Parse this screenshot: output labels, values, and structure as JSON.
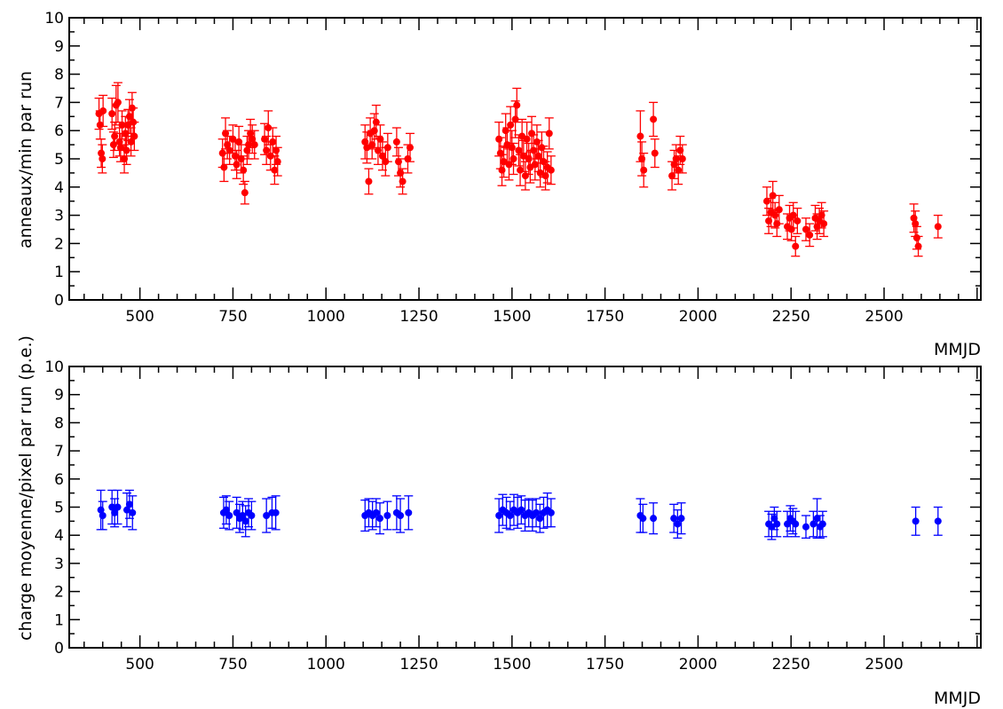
{
  "chart_data": [
    {
      "type": "scatter",
      "error_bars": true,
      "title": "",
      "xlabel": "MMJD",
      "ylabel": "anneaux/min par run",
      "xlim": [
        310,
        2760
      ],
      "ylim": [
        0,
        10
      ],
      "x_ticks": [
        500,
        750,
        1000,
        1250,
        1500,
        1750,
        2000,
        2250,
        2500
      ],
      "y_ticks": [
        0,
        1,
        2,
        3,
        4,
        5,
        6,
        7,
        8,
        9,
        10
      ],
      "grid": false,
      "marker_color": "#ff0000",
      "points": [
        {
          "x": 390,
          "y": 6.6,
          "err": 0.55
        },
        {
          "x": 393,
          "y": 6.2,
          "err": 0.5
        },
        {
          "x": 396,
          "y": 5.2,
          "err": 0.5
        },
        {
          "x": 399,
          "y": 5.0,
          "err": 0.5
        },
        {
          "x": 401,
          "y": 6.7,
          "err": 0.55
        },
        {
          "x": 425,
          "y": 6.6,
          "err": 0.55
        },
        {
          "x": 429,
          "y": 5.5,
          "err": 0.45
        },
        {
          "x": 432,
          "y": 5.8,
          "err": 0.5
        },
        {
          "x": 436,
          "y": 6.9,
          "err": 0.7
        },
        {
          "x": 441,
          "y": 7.0,
          "err": 0.7
        },
        {
          "x": 445,
          "y": 5.6,
          "err": 0.5
        },
        {
          "x": 448,
          "y": 5.4,
          "err": 0.5
        },
        {
          "x": 452,
          "y": 6.2,
          "err": 0.5
        },
        {
          "x": 458,
          "y": 5.0,
          "err": 0.5
        },
        {
          "x": 461,
          "y": 5.9,
          "err": 0.6
        },
        {
          "x": 464,
          "y": 5.3,
          "err": 0.5
        },
        {
          "x": 468,
          "y": 6.2,
          "err": 0.55
        },
        {
          "x": 472,
          "y": 6.5,
          "err": 0.6
        },
        {
          "x": 476,
          "y": 5.6,
          "err": 0.5
        },
        {
          "x": 479,
          "y": 6.8,
          "err": 0.55
        },
        {
          "x": 482,
          "y": 6.3,
          "err": 0.5
        },
        {
          "x": 485,
          "y": 5.8,
          "err": 0.5
        },
        {
          "x": 722,
          "y": 5.2,
          "err": 0.5
        },
        {
          "x": 726,
          "y": 4.7,
          "err": 0.5
        },
        {
          "x": 730,
          "y": 5.9,
          "err": 0.55
        },
        {
          "x": 735,
          "y": 5.5,
          "err": 0.5
        },
        {
          "x": 741,
          "y": 5.3,
          "err": 0.5
        },
        {
          "x": 750,
          "y": 5.7,
          "err": 0.5
        },
        {
          "x": 756,
          "y": 5.1,
          "err": 0.5
        },
        {
          "x": 760,
          "y": 4.8,
          "err": 0.5
        },
        {
          "x": 766,
          "y": 5.6,
          "err": 0.55
        },
        {
          "x": 772,
          "y": 5.0,
          "err": 0.5
        },
        {
          "x": 778,
          "y": 4.6,
          "err": 0.5
        },
        {
          "x": 782,
          "y": 3.8,
          "err": 0.4
        },
        {
          "x": 788,
          "y": 5.3,
          "err": 0.5
        },
        {
          "x": 792,
          "y": 5.5,
          "err": 0.5
        },
        {
          "x": 797,
          "y": 5.9,
          "err": 0.5
        },
        {
          "x": 802,
          "y": 5.7,
          "err": 0.5
        },
        {
          "x": 808,
          "y": 5.5,
          "err": 0.5
        },
        {
          "x": 835,
          "y": 5.7,
          "err": 0.55
        },
        {
          "x": 840,
          "y": 5.3,
          "err": 0.5
        },
        {
          "x": 845,
          "y": 6.1,
          "err": 0.6
        },
        {
          "x": 851,
          "y": 5.1,
          "err": 0.5
        },
        {
          "x": 857,
          "y": 5.6,
          "err": 0.5
        },
        {
          "x": 862,
          "y": 4.6,
          "err": 0.5
        },
        {
          "x": 866,
          "y": 5.3,
          "err": 0.5
        },
        {
          "x": 870,
          "y": 4.9,
          "err": 0.5
        },
        {
          "x": 1105,
          "y": 5.6,
          "err": 0.6
        },
        {
          "x": 1110,
          "y": 5.4,
          "err": 0.55
        },
        {
          "x": 1115,
          "y": 4.2,
          "err": 0.45
        },
        {
          "x": 1119,
          "y": 5.9,
          "err": 0.55
        },
        {
          "x": 1124,
          "y": 5.5,
          "err": 0.5
        },
        {
          "x": 1130,
          "y": 6.0,
          "err": 0.6
        },
        {
          "x": 1135,
          "y": 6.3,
          "err": 0.6
        },
        {
          "x": 1140,
          "y": 5.3,
          "err": 0.5
        },
        {
          "x": 1146,
          "y": 5.7,
          "err": 0.5
        },
        {
          "x": 1152,
          "y": 5.1,
          "err": 0.5
        },
        {
          "x": 1160,
          "y": 4.9,
          "err": 0.5
        },
        {
          "x": 1166,
          "y": 5.4,
          "err": 0.5
        },
        {
          "x": 1190,
          "y": 5.6,
          "err": 0.5
        },
        {
          "x": 1195,
          "y": 4.9,
          "err": 0.5
        },
        {
          "x": 1200,
          "y": 4.5,
          "err": 0.5
        },
        {
          "x": 1206,
          "y": 4.2,
          "err": 0.45
        },
        {
          "x": 1220,
          "y": 5.0,
          "err": 0.5
        },
        {
          "x": 1226,
          "y": 5.4,
          "err": 0.5
        },
        {
          "x": 1465,
          "y": 5.7,
          "err": 0.6
        },
        {
          "x": 1469,
          "y": 5.2,
          "err": 0.55
        },
        {
          "x": 1473,
          "y": 4.6,
          "err": 0.55
        },
        {
          "x": 1478,
          "y": 4.9,
          "err": 0.55
        },
        {
          "x": 1483,
          "y": 6.0,
          "err": 0.6
        },
        {
          "x": 1487,
          "y": 5.5,
          "err": 0.6
        },
        {
          "x": 1492,
          "y": 4.8,
          "err": 0.55
        },
        {
          "x": 1496,
          "y": 6.2,
          "err": 0.65
        },
        {
          "x": 1500,
          "y": 5.4,
          "err": 0.6
        },
        {
          "x": 1504,
          "y": 5.0,
          "err": 0.55
        },
        {
          "x": 1509,
          "y": 6.4,
          "err": 0.65
        },
        {
          "x": 1513,
          "y": 6.9,
          "err": 0.6
        },
        {
          "x": 1518,
          "y": 5.3,
          "err": 0.55
        },
        {
          "x": 1522,
          "y": 4.6,
          "err": 0.55
        },
        {
          "x": 1527,
          "y": 5.8,
          "err": 0.6
        },
        {
          "x": 1531,
          "y": 5.1,
          "err": 0.55
        },
        {
          "x": 1536,
          "y": 4.4,
          "err": 0.5
        },
        {
          "x": 1540,
          "y": 5.7,
          "err": 0.6
        },
        {
          "x": 1545,
          "y": 5.0,
          "err": 0.55
        },
        {
          "x": 1549,
          "y": 4.7,
          "err": 0.55
        },
        {
          "x": 1553,
          "y": 5.9,
          "err": 0.6
        },
        {
          "x": 1558,
          "y": 5.3,
          "err": 0.55
        },
        {
          "x": 1562,
          "y": 4.8,
          "err": 0.55
        },
        {
          "x": 1567,
          "y": 5.6,
          "err": 0.6
        },
        {
          "x": 1571,
          "y": 5.1,
          "err": 0.55
        },
        {
          "x": 1576,
          "y": 4.5,
          "err": 0.5
        },
        {
          "x": 1580,
          "y": 5.4,
          "err": 0.55
        },
        {
          "x": 1585,
          "y": 4.9,
          "err": 0.55
        },
        {
          "x": 1590,
          "y": 4.4,
          "err": 0.5
        },
        {
          "x": 1595,
          "y": 4.7,
          "err": 0.55
        },
        {
          "x": 1600,
          "y": 5.9,
          "err": 0.55
        },
        {
          "x": 1605,
          "y": 4.6,
          "err": 0.5
        },
        {
          "x": 1845,
          "y": 5.8,
          "err": 0.9
        },
        {
          "x": 1849,
          "y": 5.0,
          "err": 0.6
        },
        {
          "x": 1854,
          "y": 4.6,
          "err": 0.6
        },
        {
          "x": 1880,
          "y": 6.4,
          "err": 0.6
        },
        {
          "x": 1884,
          "y": 5.2,
          "err": 0.5
        },
        {
          "x": 1930,
          "y": 4.4,
          "err": 0.5
        },
        {
          "x": 1936,
          "y": 4.8,
          "err": 0.5
        },
        {
          "x": 1941,
          "y": 5.0,
          "err": 0.5
        },
        {
          "x": 1947,
          "y": 4.6,
          "err": 0.5
        },
        {
          "x": 1952,
          "y": 5.3,
          "err": 0.5
        },
        {
          "x": 1958,
          "y": 5.0,
          "err": 0.5
        },
        {
          "x": 2185,
          "y": 3.5,
          "err": 0.5
        },
        {
          "x": 2190,
          "y": 2.8,
          "err": 0.45
        },
        {
          "x": 2196,
          "y": 3.1,
          "err": 0.5
        },
        {
          "x": 2201,
          "y": 3.7,
          "err": 0.5
        },
        {
          "x": 2207,
          "y": 3.0,
          "err": 0.45
        },
        {
          "x": 2212,
          "y": 2.7,
          "err": 0.45
        },
        {
          "x": 2218,
          "y": 3.2,
          "err": 0.5
        },
        {
          "x": 2240,
          "y": 2.6,
          "err": 0.45
        },
        {
          "x": 2246,
          "y": 2.9,
          "err": 0.45
        },
        {
          "x": 2251,
          "y": 2.5,
          "err": 0.4
        },
        {
          "x": 2256,
          "y": 3.0,
          "err": 0.45
        },
        {
          "x": 2262,
          "y": 1.9,
          "err": 0.35
        },
        {
          "x": 2267,
          "y": 2.8,
          "err": 0.45
        },
        {
          "x": 2290,
          "y": 2.5,
          "err": 0.4
        },
        {
          "x": 2300,
          "y": 2.3,
          "err": 0.4
        },
        {
          "x": 2315,
          "y": 2.9,
          "err": 0.45
        },
        {
          "x": 2320,
          "y": 2.6,
          "err": 0.45
        },
        {
          "x": 2326,
          "y": 2.8,
          "err": 0.45
        },
        {
          "x": 2332,
          "y": 3.0,
          "err": 0.45
        },
        {
          "x": 2338,
          "y": 2.7,
          "err": 0.45
        },
        {
          "x": 2580,
          "y": 2.9,
          "err": 0.5
        },
        {
          "x": 2584,
          "y": 2.7,
          "err": 0.45
        },
        {
          "x": 2588,
          "y": 2.2,
          "err": 0.4
        },
        {
          "x": 2592,
          "y": 1.9,
          "err": 0.35
        },
        {
          "x": 2645,
          "y": 2.6,
          "err": 0.4
        }
      ]
    },
    {
      "type": "scatter",
      "error_bars": true,
      "title": "",
      "xlabel": "MMJD",
      "ylabel": "charge moyenne/pixel par run (p.e.)",
      "xlim": [
        310,
        2760
      ],
      "ylim": [
        0,
        10
      ],
      "x_ticks": [
        500,
        750,
        1000,
        1250,
        1500,
        1750,
        2000,
        2250,
        2500
      ],
      "y_ticks": [
        0,
        1,
        2,
        3,
        4,
        5,
        6,
        7,
        8,
        9,
        10
      ],
      "grid": false,
      "marker_color": "#0000ff",
      "points": [
        {
          "x": 395,
          "y": 4.9,
          "err": 0.7
        },
        {
          "x": 400,
          "y": 4.7,
          "err": 0.5
        },
        {
          "x": 425,
          "y": 5.0,
          "err": 0.6
        },
        {
          "x": 432,
          "y": 4.8,
          "err": 0.5
        },
        {
          "x": 440,
          "y": 5.0,
          "err": 0.6
        },
        {
          "x": 465,
          "y": 4.9,
          "err": 0.6
        },
        {
          "x": 472,
          "y": 5.1,
          "err": 0.5
        },
        {
          "x": 480,
          "y": 4.8,
          "err": 0.6
        },
        {
          "x": 725,
          "y": 4.8,
          "err": 0.55
        },
        {
          "x": 732,
          "y": 4.9,
          "err": 0.5
        },
        {
          "x": 740,
          "y": 4.7,
          "err": 0.5
        },
        {
          "x": 760,
          "y": 4.8,
          "err": 0.55
        },
        {
          "x": 768,
          "y": 4.6,
          "err": 0.5
        },
        {
          "x": 776,
          "y": 4.7,
          "err": 0.5
        },
        {
          "x": 784,
          "y": 4.5,
          "err": 0.55
        },
        {
          "x": 792,
          "y": 4.8,
          "err": 0.5
        },
        {
          "x": 800,
          "y": 4.7,
          "err": 0.5
        },
        {
          "x": 840,
          "y": 4.7,
          "err": 0.6
        },
        {
          "x": 855,
          "y": 4.8,
          "err": 0.55
        },
        {
          "x": 865,
          "y": 4.8,
          "err": 0.6
        },
        {
          "x": 1105,
          "y": 4.7,
          "err": 0.55
        },
        {
          "x": 1115,
          "y": 4.8,
          "err": 0.5
        },
        {
          "x": 1125,
          "y": 4.7,
          "err": 0.5
        },
        {
          "x": 1135,
          "y": 4.8,
          "err": 0.5
        },
        {
          "x": 1145,
          "y": 4.6,
          "err": 0.55
        },
        {
          "x": 1165,
          "y": 4.7,
          "err": 0.5
        },
        {
          "x": 1190,
          "y": 4.8,
          "err": 0.6
        },
        {
          "x": 1200,
          "y": 4.7,
          "err": 0.6
        },
        {
          "x": 1222,
          "y": 4.8,
          "err": 0.6
        },
        {
          "x": 1465,
          "y": 4.7,
          "err": 0.6
        },
        {
          "x": 1475,
          "y": 4.9,
          "err": 0.55
        },
        {
          "x": 1485,
          "y": 4.8,
          "err": 0.55
        },
        {
          "x": 1495,
          "y": 4.7,
          "err": 0.5
        },
        {
          "x": 1505,
          "y": 4.9,
          "err": 0.55
        },
        {
          "x": 1515,
          "y": 4.8,
          "err": 0.55
        },
        {
          "x": 1525,
          "y": 4.9,
          "err": 0.5
        },
        {
          "x": 1535,
          "y": 4.7,
          "err": 0.55
        },
        {
          "x": 1545,
          "y": 4.8,
          "err": 0.5
        },
        {
          "x": 1555,
          "y": 4.7,
          "err": 0.55
        },
        {
          "x": 1565,
          "y": 4.8,
          "err": 0.5
        },
        {
          "x": 1575,
          "y": 4.6,
          "err": 0.5
        },
        {
          "x": 1585,
          "y": 4.8,
          "err": 0.55
        },
        {
          "x": 1595,
          "y": 4.9,
          "err": 0.6
        },
        {
          "x": 1605,
          "y": 4.8,
          "err": 0.5
        },
        {
          "x": 1845,
          "y": 4.7,
          "err": 0.6
        },
        {
          "x": 1852,
          "y": 4.6,
          "err": 0.5
        },
        {
          "x": 1880,
          "y": 4.6,
          "err": 0.55
        },
        {
          "x": 1935,
          "y": 4.6,
          "err": 0.5
        },
        {
          "x": 1945,
          "y": 4.4,
          "err": 0.5
        },
        {
          "x": 1955,
          "y": 4.6,
          "err": 0.55
        },
        {
          "x": 2190,
          "y": 4.4,
          "err": 0.45
        },
        {
          "x": 2198,
          "y": 4.3,
          "err": 0.45
        },
        {
          "x": 2205,
          "y": 4.6,
          "err": 0.4
        },
        {
          "x": 2212,
          "y": 4.4,
          "err": 0.45
        },
        {
          "x": 2240,
          "y": 4.4,
          "err": 0.45
        },
        {
          "x": 2248,
          "y": 4.6,
          "err": 0.45
        },
        {
          "x": 2255,
          "y": 4.5,
          "err": 0.45
        },
        {
          "x": 2262,
          "y": 4.4,
          "err": 0.45
        },
        {
          "x": 2290,
          "y": 4.3,
          "err": 0.4
        },
        {
          "x": 2310,
          "y": 4.4,
          "err": 0.45
        },
        {
          "x": 2320,
          "y": 4.6,
          "err": 0.7
        },
        {
          "x": 2328,
          "y": 4.3,
          "err": 0.4
        },
        {
          "x": 2335,
          "y": 4.4,
          "err": 0.45
        },
        {
          "x": 2585,
          "y": 4.5,
          "err": 0.5
        },
        {
          "x": 2645,
          "y": 4.5,
          "err": 0.5
        }
      ]
    }
  ]
}
